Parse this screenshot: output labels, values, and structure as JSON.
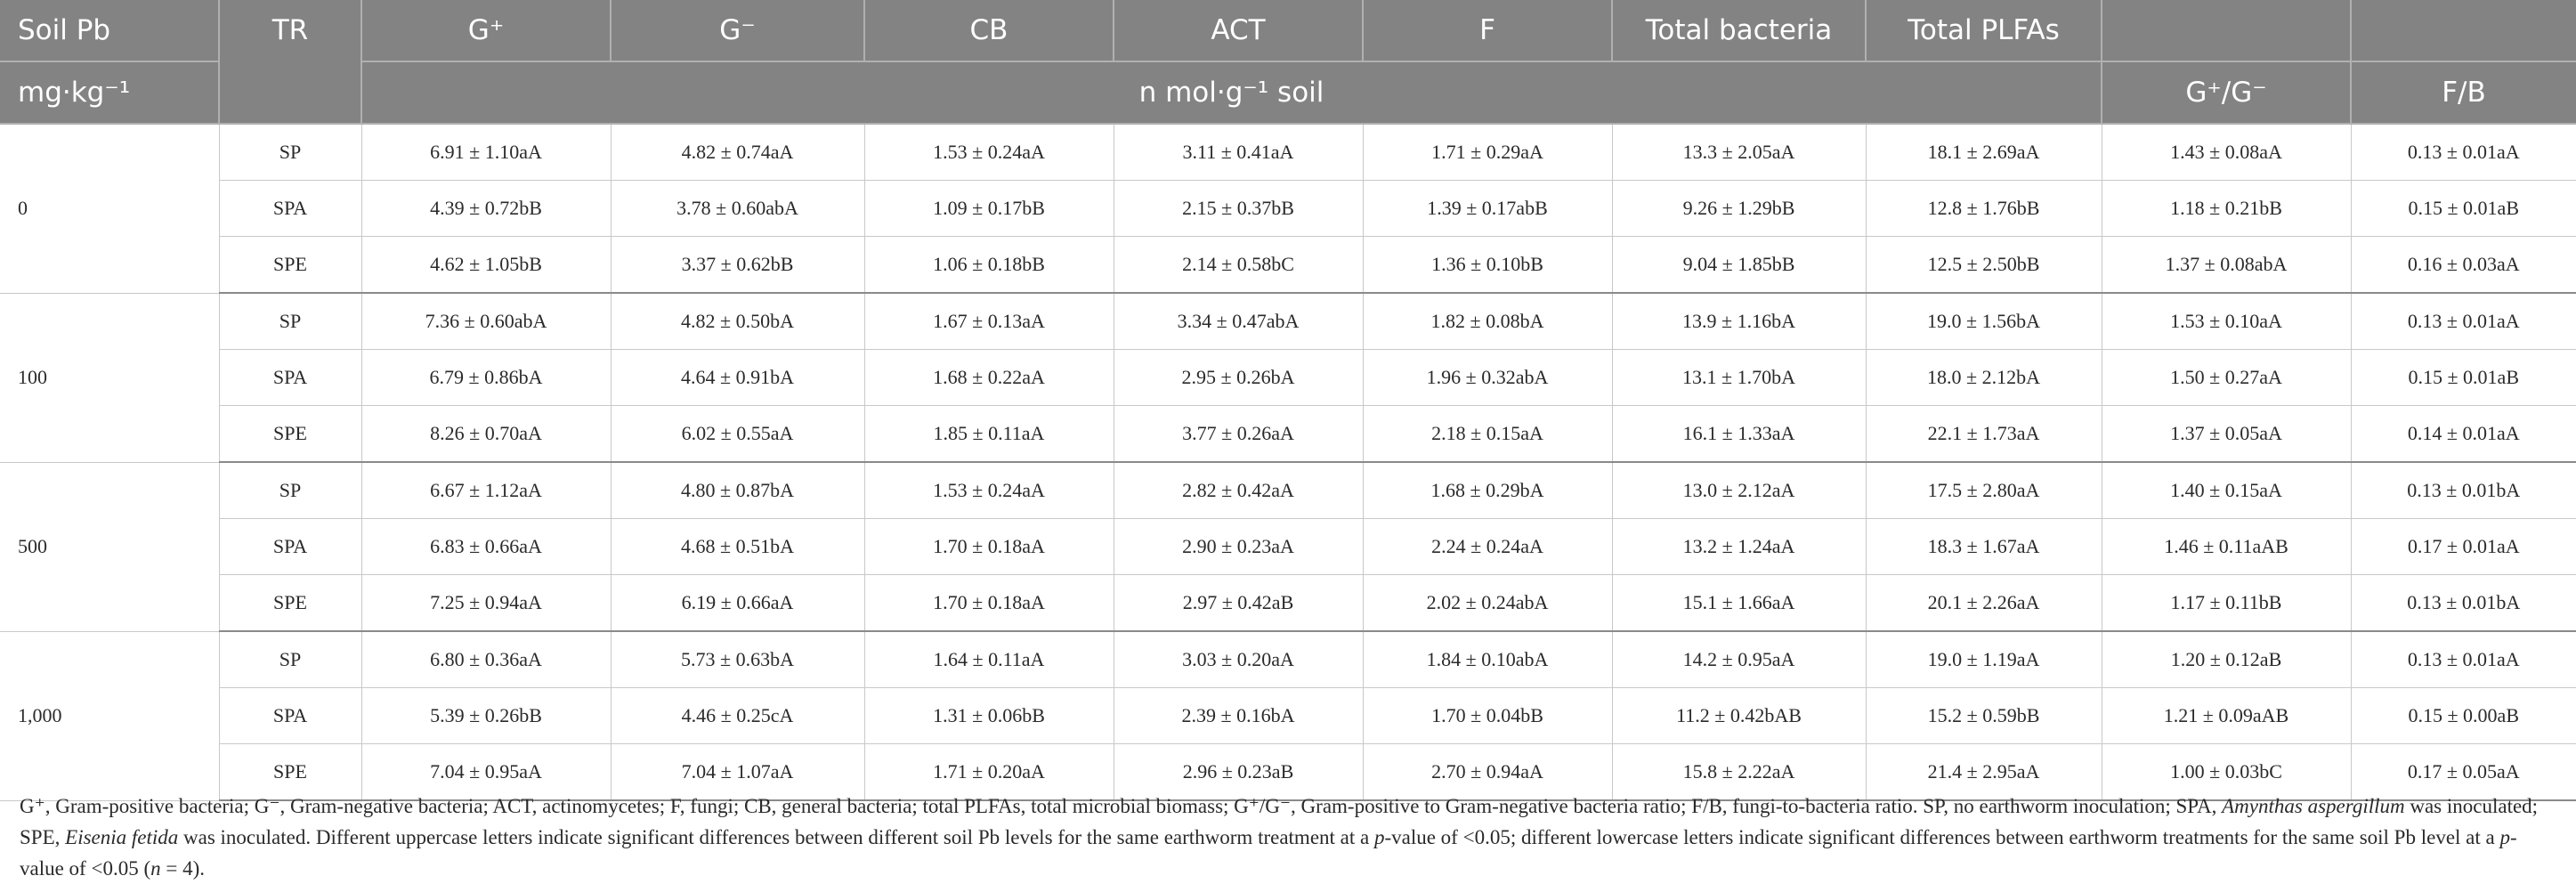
{
  "header": {
    "soil_pb": "Soil Pb",
    "unit": "mg·kg⁻¹",
    "tr": "TR",
    "gpos": "G⁺",
    "gneg": "G⁻",
    "cb": "CB",
    "act": "ACT",
    "f": "F",
    "total_bacteria": "Total bacteria",
    "total_plfas": "Total PLFAs",
    "nmol_unit": "n mol·g⁻¹ soil",
    "ratio": "G⁺/G⁻",
    "fb": "F/B"
  },
  "rows": [
    {
      "pb": "0",
      "tr": "SP",
      "gpos": "6.91 ± 1.10aA",
      "gneg": "4.82 ± 0.74aA",
      "cb": "1.53 ± 0.24aA",
      "act": "3.11 ± 0.41aA",
      "f": "1.71 ± 0.29aA",
      "tb": "13.3 ± 2.05aA",
      "tp": "18.1 ± 2.69aA",
      "ratio": "1.43 ± 0.08aA",
      "fb": "0.13 ± 0.01aA"
    },
    {
      "pb": "",
      "tr": "SPA",
      "gpos": "4.39 ± 0.72bB",
      "gneg": "3.78 ± 0.60abA",
      "cb": "1.09 ± 0.17bB",
      "act": "2.15 ± 0.37bB",
      "f": "1.39 ± 0.17abB",
      "tb": "9.26 ± 1.29bB",
      "tp": "12.8 ± 1.76bB",
      "ratio": "1.18 ± 0.21bB",
      "fb": "0.15 ± 0.01aB"
    },
    {
      "pb": "",
      "tr": "SPE",
      "gpos": "4.62 ± 1.05bB",
      "gneg": "3.37 ± 0.62bB",
      "cb": "1.06 ± 0.18bB",
      "act": "2.14 ± 0.58bC",
      "f": "1.36 ± 0.10bB",
      "tb": "9.04 ± 1.85bB",
      "tp": "12.5 ± 2.50bB",
      "ratio": "1.37 ± 0.08abA",
      "fb": "0.16 ± 0.03aA"
    },
    {
      "pb": "100",
      "tr": "SP",
      "gpos": "7.36 ± 0.60abA",
      "gneg": "4.82 ± 0.50bA",
      "cb": "1.67 ± 0.13aA",
      "act": "3.34 ± 0.47abA",
      "f": "1.82 ± 0.08bA",
      "tb": "13.9 ± 1.16bA",
      "tp": "19.0 ± 1.56bA",
      "ratio": "1.53 ± 0.10aA",
      "fb": "0.13 ± 0.01aA"
    },
    {
      "pb": "",
      "tr": "SPA",
      "gpos": "6.79 ± 0.86bA",
      "gneg": "4.64 ± 0.91bA",
      "cb": "1.68 ± 0.22aA",
      "act": "2.95 ± 0.26bA",
      "f": "1.96 ± 0.32abA",
      "tb": "13.1 ± 1.70bA",
      "tp": "18.0 ± 2.12bA",
      "ratio": "1.50 ± 0.27aA",
      "fb": "0.15 ± 0.01aB"
    },
    {
      "pb": "",
      "tr": "SPE",
      "gpos": "8.26 ± 0.70aA",
      "gneg": "6.02 ± 0.55aA",
      "cb": "1.85 ± 0.11aA",
      "act": "3.77 ± 0.26aA",
      "f": "2.18 ± 0.15aA",
      "tb": "16.1 ± 1.33aA",
      "tp": "22.1 ± 1.73aA",
      "ratio": "1.37 ± 0.05aA",
      "fb": "0.14 ± 0.01aA"
    },
    {
      "pb": "500",
      "tr": "SP",
      "gpos": "6.67 ± 1.12aA",
      "gneg": "4.80 ± 0.87bA",
      "cb": "1.53 ± 0.24aA",
      "act": "2.82 ± 0.42aA",
      "f": "1.68 ± 0.29bA",
      "tb": "13.0 ± 2.12aA",
      "tp": "17.5 ± 2.80aA",
      "ratio": "1.40 ± 0.15aA",
      "fb": "0.13 ± 0.01bA"
    },
    {
      "pb": "",
      "tr": "SPA",
      "gpos": "6.83 ± 0.66aA",
      "gneg": "4.68 ± 0.51bA",
      "cb": "1.70 ± 0.18aA",
      "act": "2.90 ± 0.23aA",
      "f": "2.24 ± 0.24aA",
      "tb": "13.2 ± 1.24aA",
      "tp": "18.3 ± 1.67aA",
      "ratio": "1.46 ± 0.11aAB",
      "fb": "0.17 ± 0.01aA"
    },
    {
      "pb": "",
      "tr": "SPE",
      "gpos": "7.25 ± 0.94aA",
      "gneg": "6.19 ± 0.66aA",
      "cb": "1.70 ± 0.18aA",
      "act": "2.97 ± 0.42aB",
      "f": "2.02 ± 0.24abA",
      "tb": "15.1 ± 1.66aA",
      "tp": "20.1 ± 2.26aA",
      "ratio": "1.17 ± 0.11bB",
      "fb": "0.13 ± 0.01bA"
    },
    {
      "pb": "1,000",
      "tr": "SP",
      "gpos": "6.80 ± 0.36aA",
      "gneg": "5.73 ± 0.63bA",
      "cb": "1.64 ± 0.11aA",
      "act": "3.03 ± 0.20aA",
      "f": "1.84 ± 0.10abA",
      "tb": "14.2 ± 0.95aA",
      "tp": "19.0 ± 1.19aA",
      "ratio": "1.20 ± 0.12aB",
      "fb": "0.13 ± 0.01aA"
    },
    {
      "pb": "",
      "tr": "SPA",
      "gpos": "5.39 ± 0.26bB",
      "gneg": "4.46 ± 0.25cA",
      "cb": "1.31 ± 0.06bB",
      "act": "2.39 ± 0.16bA",
      "f": "1.70 ± 0.04bB",
      "tb": "11.2 ± 0.42bAB",
      "tp": "15.2 ± 0.59bB",
      "ratio": "1.21 ± 0.09aAB",
      "fb": "0.15 ± 0.00aB"
    },
    {
      "pb": "",
      "tr": "SPE",
      "gpos": "7.04 ± 0.95aA",
      "gneg": "7.04 ± 1.07aA",
      "cb": "1.71 ± 0.20aA",
      "act": "2.96 ± 0.23aB",
      "f": "2.70 ± 0.94aA",
      "tb": "15.8 ± 2.22aA",
      "tp": "21.4 ± 2.95aA",
      "ratio": "1.00 ± 0.03bC",
      "fb": "0.17 ± 0.05aA"
    }
  ],
  "footnote": {
    "part1": "G⁺, Gram-positive bacteria; G⁻, Gram-negative bacteria; ACT, actinomycetes; F, fungi; CB, general bacteria; total PLFAs, total microbial biomass; G⁺/G⁻, Gram-positive to Gram-negative bacteria ratio; F/B, fungi-to-bacteria ratio. SP, no earthworm inoculation; SPA,",
    "species1": "Amynthas aspergillum",
    "part2": " was inoculated; SPE, ",
    "species2": "Eisenia fetida",
    "part3": " was inoculated. Different uppercase letters indicate significant differences between different soil Pb levels for the same earthworm treatment at a ",
    "p1": "p",
    "part4": "-value of <0.05; different lowercase letters indicate significant differences between earthworm treatments for the same soil Pb level at a ",
    "p2": "p",
    "part5": "-value of <0.05 (",
    "n": "n",
    "part6": " = 4)."
  }
}
